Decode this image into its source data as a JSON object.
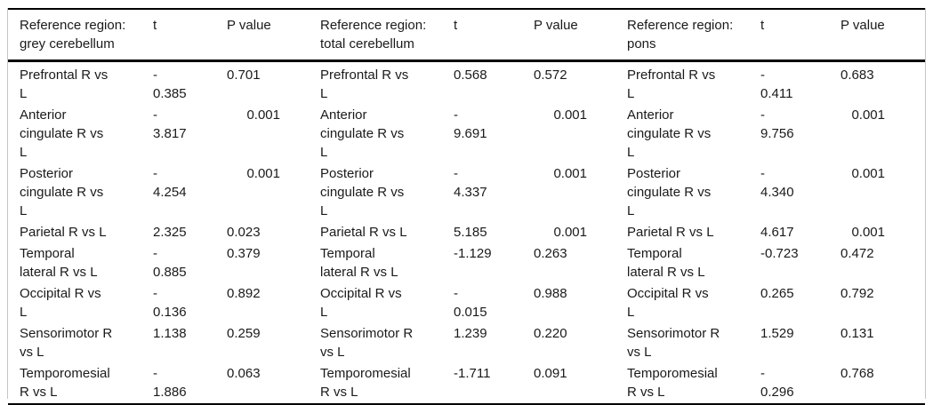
{
  "colors": {
    "text": "#1a1a1a",
    "rule": "#000000",
    "frame_border": "#c6c6c6",
    "background": "#ffffff"
  },
  "table": {
    "groups": [
      {
        "label": "Reference region:\ngrey cerebellum",
        "t_header": "t",
        "p_header": "P value"
      },
      {
        "label": "Reference region:\ntotal cerebellum",
        "t_header": "t",
        "p_header": "P value"
      },
      {
        "label": "Reference region:\npons",
        "t_header": "t",
        "p_header": "P value"
      }
    ],
    "rows": [
      {
        "id": "prefrontal",
        "cells": [
          {
            "region": "Prefrontal R vs\nL",
            "t": "-\n0.385",
            "p": "0.701",
            "p_align": "left"
          },
          {
            "region": "Prefrontal R vs\nL",
            "t": "0.568",
            "p": "0.572",
            "p_align": "left"
          },
          {
            "region": "Prefrontal R vs\nL",
            "t": "-\n0.411",
            "p": "0.683",
            "p_align": "left"
          }
        ]
      },
      {
        "id": "anterior-cingulate",
        "cells": [
          {
            "region": "Anterior\ncingulate R vs\nL",
            "t": "-\n3.817",
            "p": "0.001",
            "p_align": "right"
          },
          {
            "region": "Anterior\ncingulate R vs\nL",
            "t": "-\n9.691",
            "p": "0.001",
            "p_align": "right"
          },
          {
            "region": "Anterior\ncingulate R vs\nL",
            "t": "-\n9.756",
            "p": "0.001",
            "p_align": "right"
          }
        ]
      },
      {
        "id": "posterior-cingulate",
        "cells": [
          {
            "region": "Posterior\ncingulate R vs\nL",
            "t": "-\n4.254",
            "p": "0.001",
            "p_align": "right"
          },
          {
            "region": "Posterior\ncingulate R vs\nL",
            "t": "-\n4.337",
            "p": "0.001",
            "p_align": "right"
          },
          {
            "region": "Posterior\ncingulate R vs\nL",
            "t": "-\n4.340",
            "p": "0.001",
            "p_align": "right"
          }
        ]
      },
      {
        "id": "parietal",
        "cells": [
          {
            "region": "Parietal R vs L",
            "t": "2.325",
            "p": "0.023",
            "p_align": "left"
          },
          {
            "region": "Parietal R vs L",
            "t": "5.185",
            "p": "0.001",
            "p_align": "right"
          },
          {
            "region": "Parietal R vs L",
            "t": "4.617",
            "p": "0.001",
            "p_align": "right"
          }
        ]
      },
      {
        "id": "temporal-lateral",
        "cells": [
          {
            "region": "Temporal\nlateral R vs L",
            "t": "-\n0.885",
            "p": "0.379",
            "p_align": "left"
          },
          {
            "region": "Temporal\nlateral R vs L",
            "t": "-1.129",
            "p": "0.263",
            "p_align": "left"
          },
          {
            "region": "Temporal\nlateral R vs L",
            "t": "-0.723",
            "p": "0.472",
            "p_align": "left"
          }
        ]
      },
      {
        "id": "occipital",
        "cells": [
          {
            "region": "Occipital R vs\nL",
            "t": "-\n0.136",
            "p": "0.892",
            "p_align": "left"
          },
          {
            "region": "Occipital R vs\nL",
            "t": "-\n0.015",
            "p": "0.988",
            "p_align": "left"
          },
          {
            "region": "Occipital R vs\nL",
            "t": "0.265",
            "p": "0.792",
            "p_align": "left"
          }
        ]
      },
      {
        "id": "sensorimotor",
        "cells": [
          {
            "region": "Sensorimotor R\nvs L",
            "t": "1.138",
            "p": "0.259",
            "p_align": "left"
          },
          {
            "region": "Sensorimotor R\nvs L",
            "t": "1.239",
            "p": "0.220",
            "p_align": "left"
          },
          {
            "region": "Sensorimotor R\nvs L",
            "t": "1.529",
            "p": "0.131",
            "p_align": "left"
          }
        ]
      },
      {
        "id": "temporomesial",
        "cells": [
          {
            "region": "Temporomesial\nR vs L",
            "t": "-\n1.886",
            "p": "0.063",
            "p_align": "left"
          },
          {
            "region": "Temporomesial\nR vs L",
            "t": "-1.711",
            "p": "0.091",
            "p_align": "left"
          },
          {
            "region": "Temporomesial\nR vs L",
            "t": "-\n0.296",
            "p": "0.768",
            "p_align": "left"
          }
        ]
      }
    ]
  }
}
